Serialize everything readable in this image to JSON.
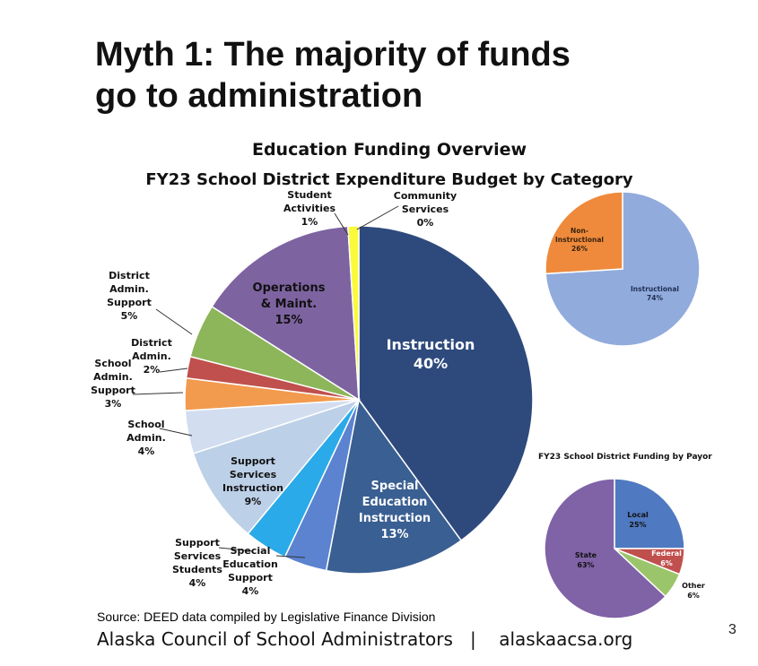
{
  "slide": {
    "title_line1": "Myth 1: The majority of funds",
    "title_line2": "go to administration",
    "chart_title": "Education Funding Overview",
    "source_note": "Source: DEED data compiled by Legislative Finance Division",
    "footer_org": "Alaska Council of School Administrators",
    "footer_separator": "|",
    "footer_url": "alaskaacsa.org",
    "page_number": "3"
  },
  "chart_data": [
    {
      "type": "pie",
      "title": "FY23 School District Expenditure Budget by Category",
      "unit": "%",
      "slices": [
        {
          "label": "Instruction",
          "value": 40,
          "color": "#2e4a7d"
        },
        {
          "label": "Special Education Instruction",
          "value": 13,
          "color": "#3a5f92"
        },
        {
          "label": "Special Education Support",
          "value": 4,
          "color": "#5b83d0"
        },
        {
          "label": "Support Services Students",
          "value": 4,
          "color": "#2aaae8"
        },
        {
          "label": "Support Services Instruction",
          "value": 9,
          "color": "#bcd0e8"
        },
        {
          "label": "School Admin.",
          "value": 4,
          "color": "#d2ddf0"
        },
        {
          "label": "School Admin. Support",
          "value": 3,
          "color": "#f29a4e"
        },
        {
          "label": "District Admin.",
          "value": 2,
          "color": "#c0504d"
        },
        {
          "label": "District Admin. Support",
          "value": 5,
          "color": "#8db65a"
        },
        {
          "label": "Operations & Maint.",
          "value": 15,
          "color": "#7e63a1"
        },
        {
          "label": "Student Activities",
          "value": 1,
          "color": "#fafa3a"
        },
        {
          "label": "Community Services",
          "value": 0,
          "color": "#ffffff"
        }
      ],
      "label_text": [
        {
          "lines": [
            "Instruction",
            "40%"
          ],
          "color": "#ffffff"
        },
        {
          "lines": [
            "Special",
            "Education",
            "Instruction",
            "13%"
          ],
          "color": "#ffffff"
        },
        {
          "lines": [
            "Special",
            "Education",
            "Support",
            "4%"
          ],
          "color": "#111111"
        },
        {
          "lines": [
            "Support",
            "Services",
            "Students",
            "4%"
          ],
          "color": "#111111"
        },
        {
          "lines": [
            "Support",
            "Services",
            "Instruction",
            "9%"
          ],
          "color": "#111111"
        },
        {
          "lines": [
            "School",
            "Admin.",
            "4%"
          ],
          "color": "#111111"
        },
        {
          "lines": [
            "School",
            "Admin.",
            "Support",
            "3%"
          ],
          "color": "#111111"
        },
        {
          "lines": [
            "District",
            "Admin.",
            "2%"
          ],
          "color": "#111111"
        },
        {
          "lines": [
            "District",
            "Admin.",
            "Support",
            "5%"
          ],
          "color": "#111111"
        },
        {
          "lines": [
            "Operations",
            "& Maint.",
            "15%"
          ],
          "color": "#111111"
        },
        {
          "lines": [
            "Student",
            "Activities",
            "1%"
          ],
          "color": "#111111"
        },
        {
          "lines": [
            "Community",
            "Services",
            "0%"
          ],
          "color": "#111111"
        }
      ]
    },
    {
      "type": "pie",
      "title": "",
      "unit": "%",
      "slices": [
        {
          "label": "Instructional",
          "value": 74,
          "color": "#91abdc"
        },
        {
          "label": "Non-Instructional",
          "value": 26,
          "color": "#ef8a3c"
        }
      ],
      "label_text": [
        {
          "lines": [
            "Instructional",
            "74%"
          ],
          "color": "#1f2f55"
        },
        {
          "lines": [
            "Non-",
            "Instructional",
            "26%"
          ],
          "color": "#3a2410"
        }
      ]
    },
    {
      "type": "pie",
      "title": "FY23 School District Funding by Payor",
      "unit": "%",
      "slices": [
        {
          "label": "Local",
          "value": 25,
          "color": "#4f79c0"
        },
        {
          "label": "Federal",
          "value": 6,
          "color": "#c0504d"
        },
        {
          "label": "Other",
          "value": 6,
          "color": "#9bc56a"
        },
        {
          "label": "State",
          "value": 63,
          "color": "#8062a6"
        }
      ],
      "label_text": [
        {
          "lines": [
            "Local",
            "25%"
          ],
          "color": "#111111"
        },
        {
          "lines": [
            "Federal",
            "6%"
          ],
          "color": "#ffffff"
        },
        {
          "lines": [
            "Other",
            "6%"
          ],
          "color": "#111111"
        },
        {
          "lines": [
            "State",
            "63%"
          ],
          "color": "#111111"
        }
      ]
    }
  ]
}
